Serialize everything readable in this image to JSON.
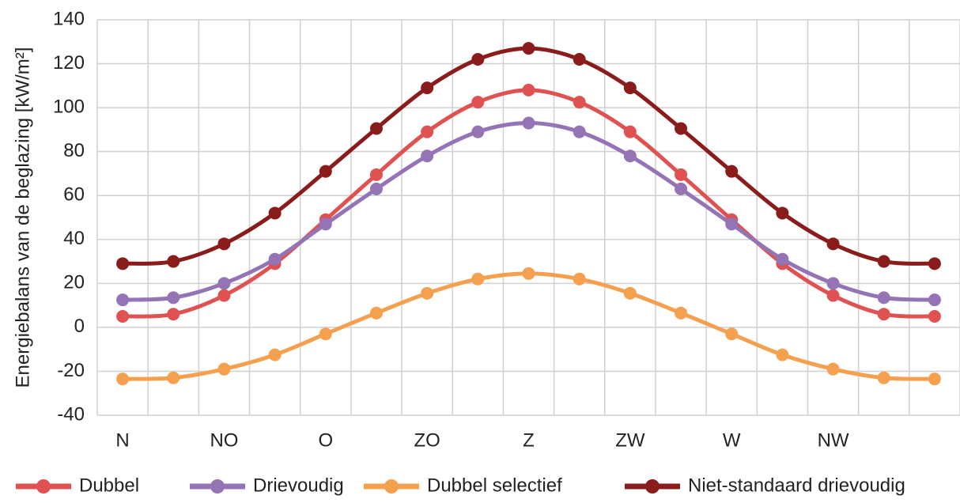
{
  "chart_data": {
    "type": "line",
    "y_label": "Energiebalans van de beglazing [kW/m²]",
    "categories": [
      "N",
      null,
      "NO",
      null,
      "O",
      null,
      "ZO",
      null,
      "Z",
      null,
      "ZW",
      null,
      "W",
      null,
      "NW",
      null,
      null
    ],
    "series": [
      {
        "name": "Dubbel",
        "color": "#e05252",
        "values": [
          5,
          6,
          14.5,
          29,
          49,
          69.5,
          89,
          102.5,
          108,
          102.5,
          89,
          69.5,
          49,
          29,
          14.5,
          6,
          5
        ]
      },
      {
        "name": "Drievoudig",
        "color": "#9474b4",
        "values": [
          12.5,
          13.5,
          20,
          31,
          47,
          63,
          78,
          89,
          93,
          89,
          78,
          63,
          47,
          31,
          20,
          13.5,
          12.5
        ]
      },
      {
        "name": "Dubbel selectief",
        "color": "#f4a04e",
        "values": [
          -23.5,
          -23,
          -19,
          -12.5,
          -3,
          6.5,
          15.5,
          22,
          24.5,
          22,
          15.5,
          6.5,
          -3,
          -12.5,
          -19,
          -23,
          -23.5
        ]
      },
      {
        "name": "Niet-standaard drievoudig",
        "color": "#8b1c1c",
        "values": [
          29,
          30,
          38,
          52,
          71,
          90.5,
          109,
          122,
          127,
          122,
          109,
          90.5,
          71,
          52,
          38,
          30,
          29
        ]
      }
    ],
    "ylim": [
      -40,
      140
    ],
    "yticks": [
      -40,
      -20,
      0,
      20,
      40,
      60,
      80,
      100,
      120,
      140
    ],
    "grid": true,
    "legend": "bottom"
  }
}
